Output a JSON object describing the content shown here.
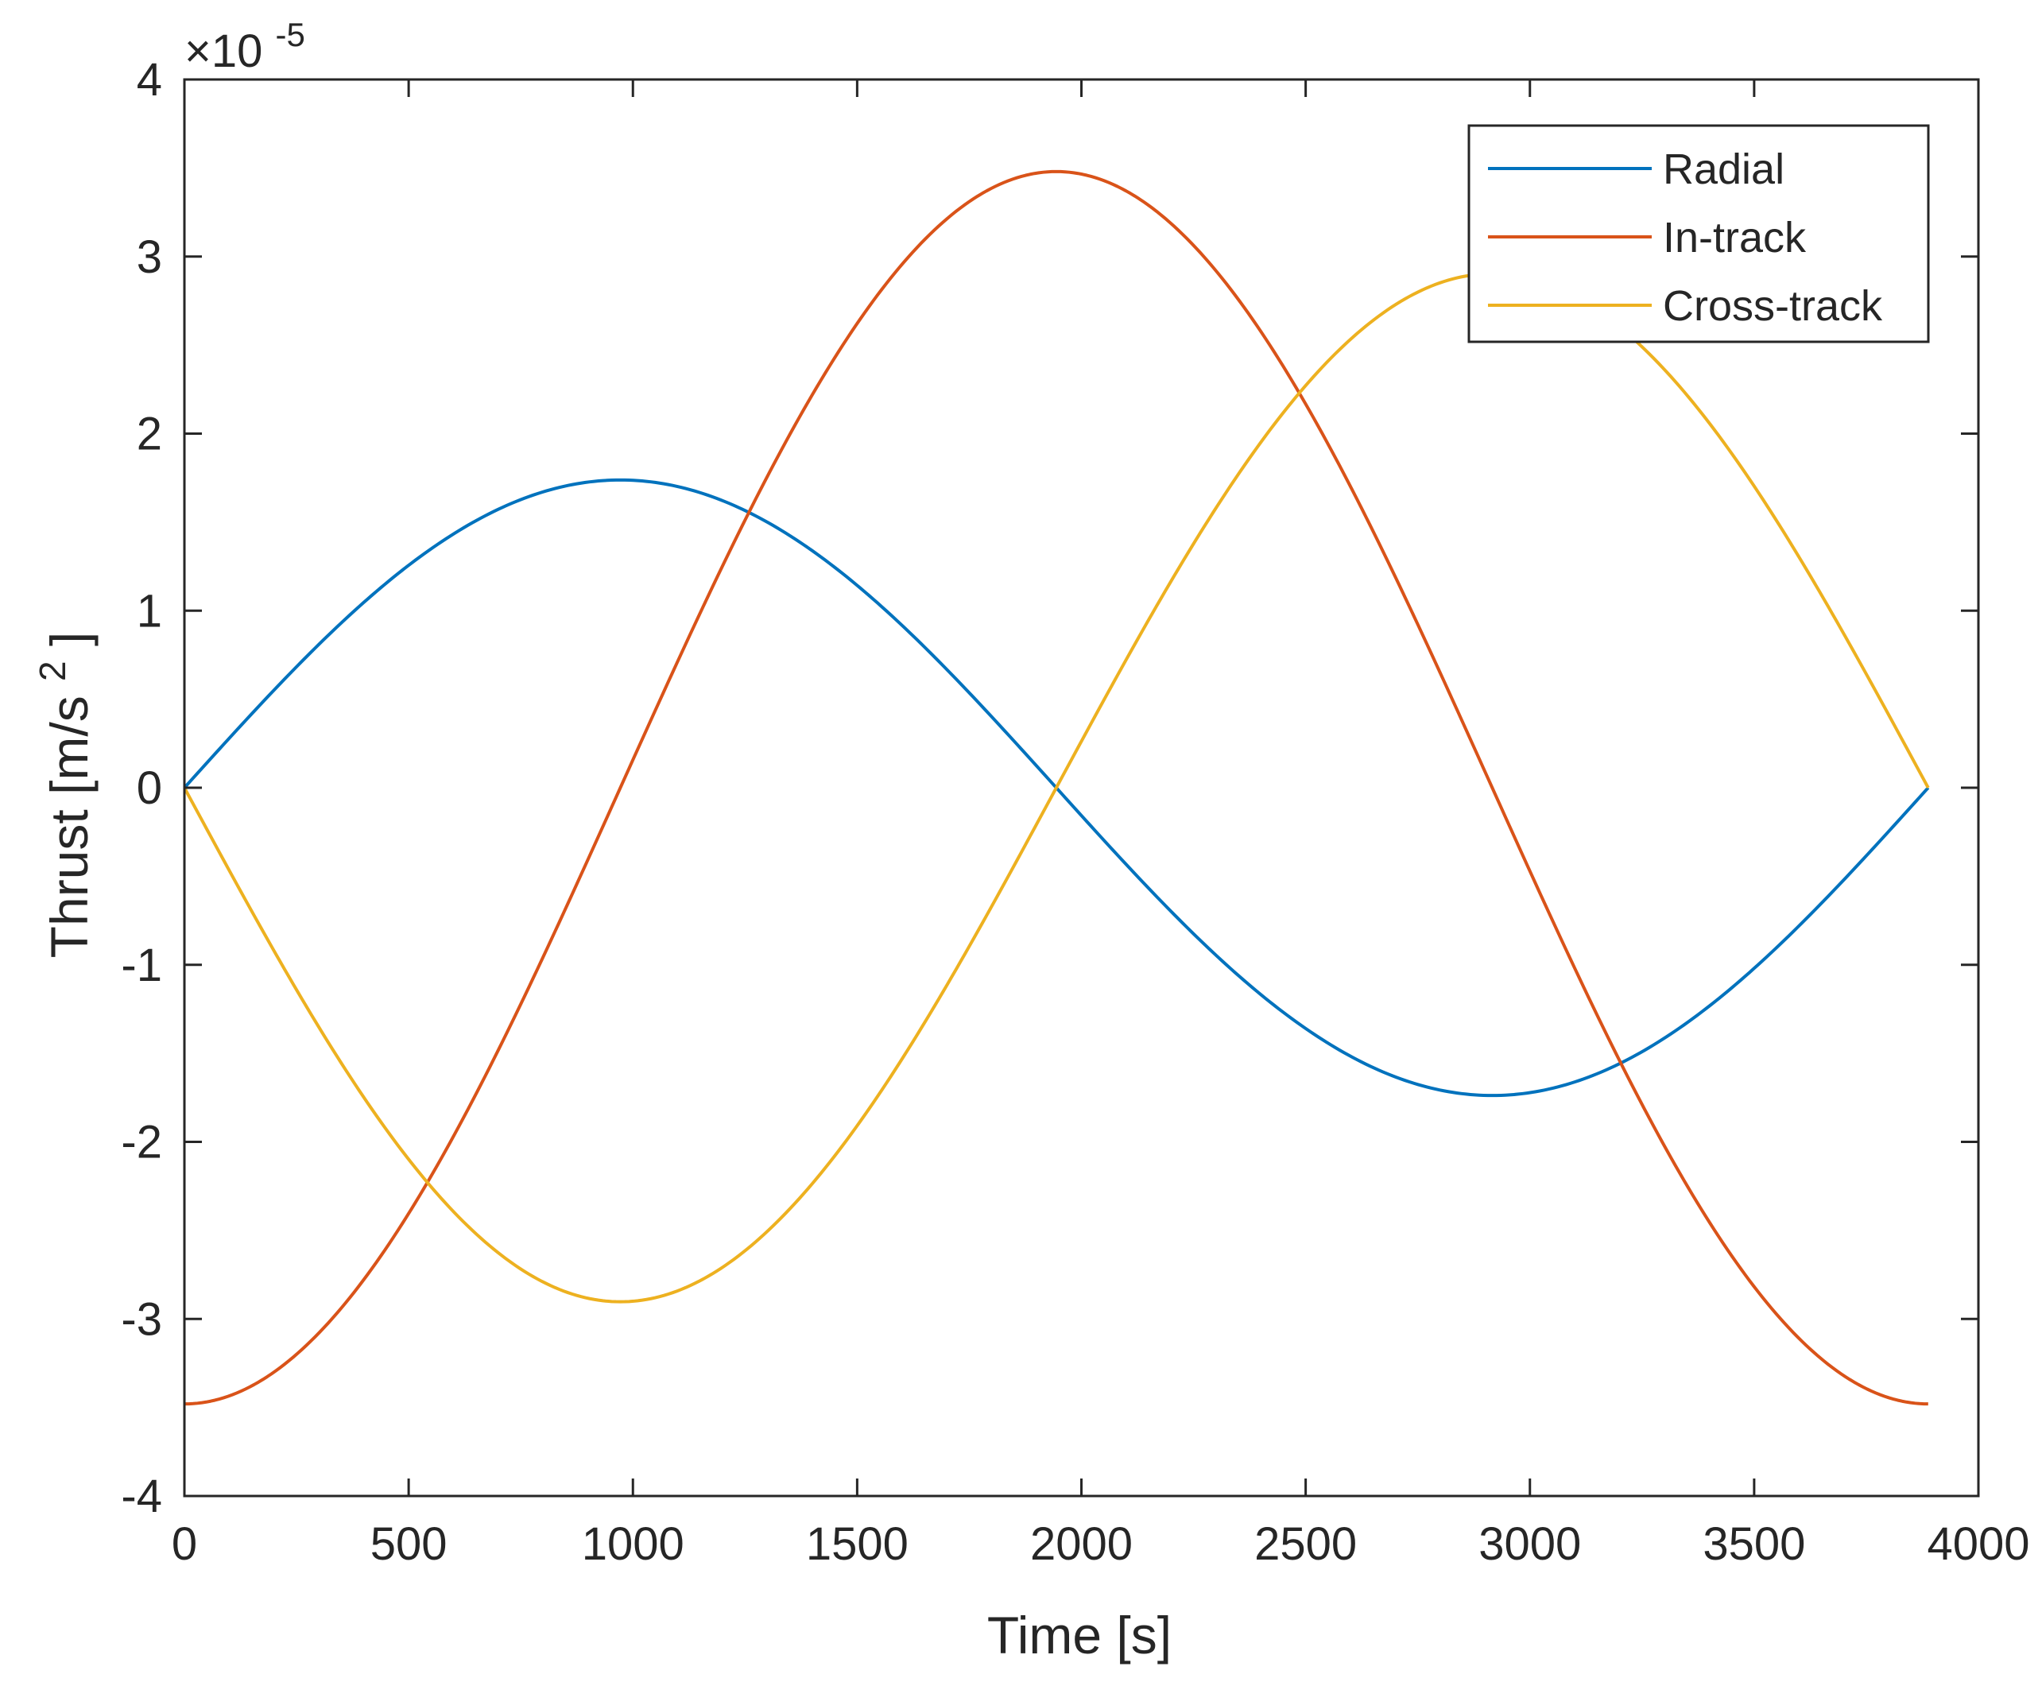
{
  "chart_data": {
    "type": "line",
    "title": "",
    "xlabel": "Time [s]",
    "ylabel": "Thrust [m/s",
    "ylabel_superscript": "2",
    "ylabel_suffix": "]",
    "y_exponent_prefix": "×10",
    "y_exponent_power": "-5",
    "xlim": [
      0,
      4000
    ],
    "ylim": [
      -4,
      4
    ],
    "x_ticks": [
      0,
      500,
      1000,
      1500,
      2000,
      2500,
      3000,
      3500,
      4000
    ],
    "y_ticks": [
      -4,
      -3,
      -2,
      -1,
      0,
      1,
      2,
      3,
      4
    ],
    "grid": false,
    "legend_position": "top-right",
    "x": [
      0,
      243,
      486,
      729,
      972,
      1215,
      1458,
      1701,
      1944,
      2187,
      2430,
      2673,
      2916,
      3159,
      3402,
      3645,
      3888
    ],
    "series": [
      {
        "name": "Radial",
        "color": "#0072BD",
        "values": [
          0,
          0.665,
          1.229,
          1.606,
          1.738,
          1.606,
          1.229,
          0.665,
          0,
          -0.665,
          -1.229,
          -1.606,
          -1.738,
          -1.606,
          -1.229,
          -0.665,
          0
        ]
      },
      {
        "name": "In-track",
        "color": "#D95319",
        "values": [
          -3.48,
          -3.215,
          -2.461,
          -1.332,
          0,
          1.332,
          2.461,
          3.215,
          3.48,
          3.215,
          2.461,
          1.332,
          0,
          -1.332,
          -2.461,
          -3.215,
          -3.48
        ]
      },
      {
        "name": "Cross-track",
        "color": "#EDB120",
        "values": [
          0,
          -1.111,
          -2.053,
          -2.682,
          -2.903,
          -2.682,
          -2.053,
          -1.111,
          0,
          1.111,
          2.053,
          2.682,
          2.903,
          2.682,
          2.053,
          1.111,
          0
        ]
      }
    ]
  }
}
